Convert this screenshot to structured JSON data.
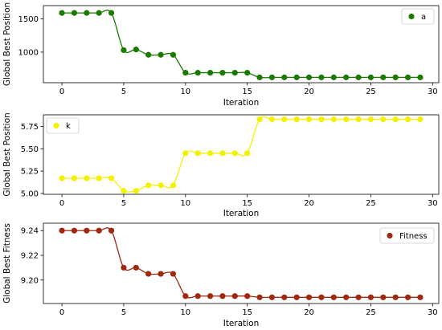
{
  "chart_data": [
    {
      "type": "line",
      "x": [
        0,
        1,
        2,
        3,
        4,
        5,
        6,
        7,
        8,
        9,
        10,
        11,
        12,
        13,
        14,
        15,
        16,
        17,
        18,
        19,
        20,
        21,
        22,
        23,
        24,
        25,
        26,
        27,
        28,
        29
      ],
      "series": [
        {
          "name": "a",
          "color": "#1a7a00",
          "values": [
            1590,
            1590,
            1590,
            1590,
            1590,
            1030,
            1040,
            960,
            960,
            960,
            690,
            690,
            690,
            690,
            690,
            690,
            620,
            620,
            620,
            620,
            620,
            620,
            620,
            620,
            620,
            620,
            620,
            620,
            620,
            620
          ]
        }
      ],
      "title": "",
      "xlabel": "Iteration",
      "ylabel": "Global Best Position",
      "xlim": [
        -1.5,
        30.5
      ],
      "ylim": [
        540,
        1700
      ],
      "xticks": [
        0,
        5,
        10,
        15,
        20,
        25,
        30
      ],
      "yticks": [
        1000,
        1500
      ],
      "legend": "top-right",
      "grid": false
    },
    {
      "type": "line",
      "x": [
        0,
        1,
        2,
        3,
        4,
        5,
        6,
        7,
        8,
        9,
        10,
        11,
        12,
        13,
        14,
        15,
        16,
        17,
        18,
        19,
        20,
        21,
        22,
        23,
        24,
        25,
        26,
        27,
        28,
        29
      ],
      "series": [
        {
          "name": "k",
          "color": "#f2f200",
          "values": [
            5.17,
            5.17,
            5.17,
            5.17,
            5.17,
            5.03,
            5.03,
            5.09,
            5.09,
            5.09,
            5.45,
            5.45,
            5.45,
            5.45,
            5.45,
            5.45,
            5.83,
            5.83,
            5.83,
            5.83,
            5.83,
            5.83,
            5.83,
            5.83,
            5.83,
            5.83,
            5.83,
            5.83,
            5.83,
            5.83
          ]
        }
      ],
      "title": "",
      "xlabel": "Iteration",
      "ylabel": "Global Best Position",
      "xlim": [
        -1.5,
        30.5
      ],
      "ylim": [
        4.99,
        5.88
      ],
      "xticks": [
        0,
        5,
        10,
        15,
        20,
        25,
        30
      ],
      "yticks": [
        5.0,
        5.25,
        5.5,
        5.75
      ],
      "legend": "top-left",
      "grid": false
    },
    {
      "type": "line",
      "x": [
        0,
        1,
        2,
        3,
        4,
        5,
        6,
        7,
        8,
        9,
        10,
        11,
        12,
        13,
        14,
        15,
        16,
        17,
        18,
        19,
        20,
        21,
        22,
        23,
        24,
        25,
        26,
        27,
        28,
        29
      ],
      "series": [
        {
          "name": "Fitness",
          "color": "#a0280f",
          "values": [
            9.24,
            9.24,
            9.24,
            9.24,
            9.24,
            9.21,
            9.21,
            9.205,
            9.205,
            9.205,
            9.187,
            9.187,
            9.187,
            9.187,
            9.187,
            9.187,
            9.186,
            9.186,
            9.186,
            9.186,
            9.186,
            9.186,
            9.186,
            9.186,
            9.186,
            9.186,
            9.186,
            9.186,
            9.186,
            9.186
          ]
        }
      ],
      "title": "",
      "xlabel": "Iteration",
      "ylabel": "Global Best Fitness",
      "xlim": [
        -1.5,
        30.5
      ],
      "ylim": [
        9.181,
        9.246
      ],
      "xticks": [
        0,
        5,
        10,
        15,
        20,
        25,
        30
      ],
      "yticks": [
        9.2,
        9.22,
        9.24
      ],
      "legend": "top-right",
      "grid": false
    }
  ]
}
